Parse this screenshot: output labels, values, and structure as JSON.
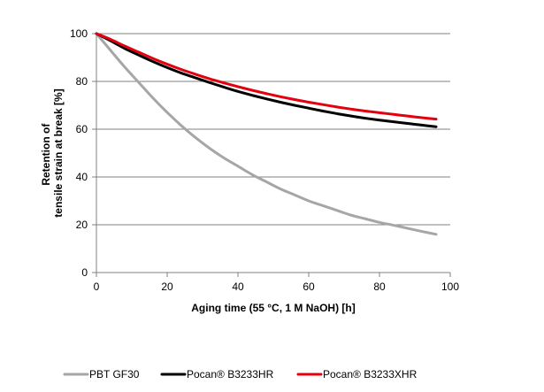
{
  "chart_data": {
    "type": "line",
    "title": "",
    "xlabel": "Aging time (55 °C, 1 M NaOH) [h]",
    "ylabel_line1": "Retention of",
    "ylabel_line2": "tensile strain at break [%]",
    "xlim": [
      0,
      100
    ],
    "ylim": [
      0,
      100
    ],
    "xticks": [
      0,
      20,
      40,
      60,
      80,
      100
    ],
    "yticks": [
      0,
      20,
      40,
      60,
      80,
      100
    ],
    "xtick_labels": [
      "0",
      "20",
      "40",
      "60",
      "80",
      "100"
    ],
    "ytick_labels": [
      "0",
      "20",
      "40",
      "60",
      "80",
      "100"
    ],
    "grid": "horizontal",
    "legend_position": "bottom",
    "series": [
      {
        "name": "PBT GF30",
        "color": "#a6a6a6",
        "x": [
          0,
          4,
          8,
          12,
          16,
          20,
          24,
          28,
          32,
          36,
          40,
          44,
          48,
          52,
          56,
          60,
          64,
          68,
          72,
          76,
          80,
          84,
          88,
          92,
          96
        ],
        "y": [
          100,
          93,
          86,
          79.5,
          73,
          67,
          61.5,
          56.5,
          52,
          48,
          44.5,
          41,
          38,
          35,
          32.5,
          30,
          28,
          26,
          24,
          22.5,
          21,
          19.8,
          18.5,
          17.2,
          16
        ]
      },
      {
        "name": "Pocan® B3233HR",
        "color": "#000000",
        "x": [
          0,
          4,
          8,
          12,
          16,
          20,
          24,
          28,
          32,
          36,
          40,
          44,
          48,
          52,
          56,
          60,
          64,
          68,
          72,
          76,
          80,
          84,
          88,
          92,
          96
        ],
        "y": [
          100,
          97,
          93.8,
          91,
          88.3,
          85.8,
          83.5,
          81.5,
          79.5,
          77.6,
          75.8,
          74.2,
          72.7,
          71.3,
          70,
          68.8,
          67.6,
          66.5,
          65.5,
          64.6,
          63.8,
          63.1,
          62.4,
          61.7,
          61
        ]
      },
      {
        "name": "Pocan® B3233XHR",
        "color": "#e3000f",
        "x": [
          0,
          4,
          8,
          12,
          16,
          20,
          24,
          28,
          32,
          36,
          40,
          44,
          48,
          52,
          56,
          60,
          64,
          68,
          72,
          76,
          80,
          84,
          88,
          92,
          96
        ],
        "y": [
          100,
          97.6,
          94.8,
          92.2,
          89.6,
          87.2,
          85,
          83,
          81.1,
          79.4,
          77.8,
          76.3,
          74.9,
          73.6,
          72.4,
          71.3,
          70.3,
          69.3,
          68.4,
          67.6,
          66.9,
          66.2,
          65.5,
          64.8,
          64.2
        ]
      }
    ]
  }
}
